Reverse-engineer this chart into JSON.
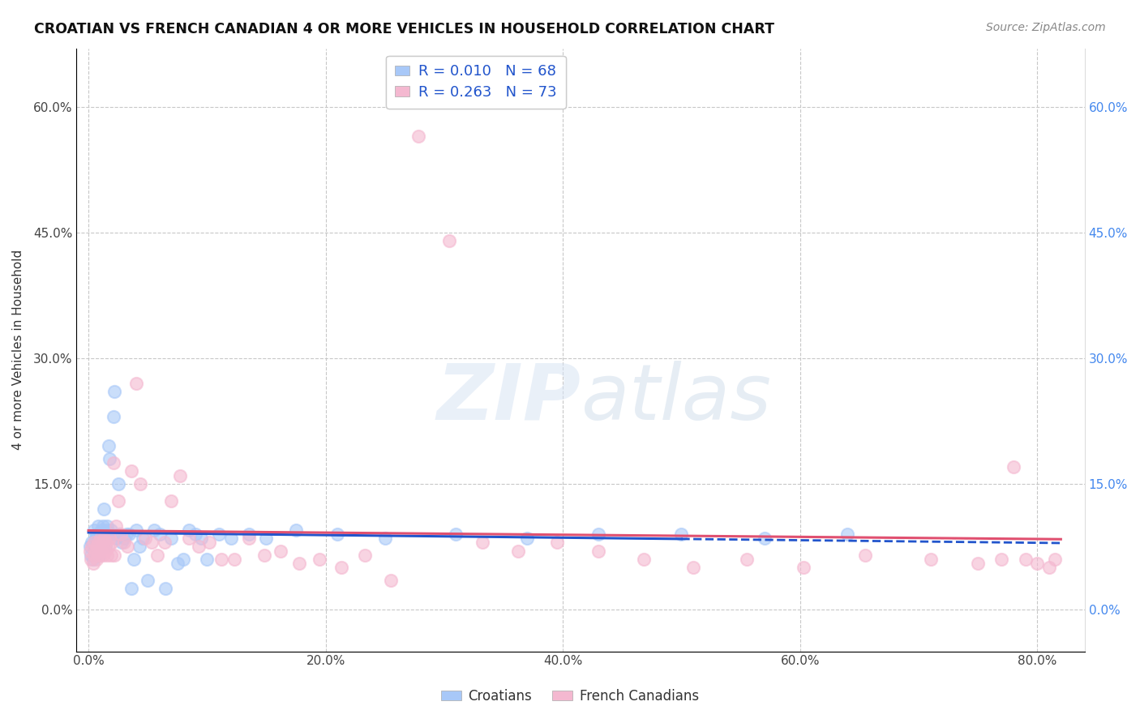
{
  "title": "CROATIAN VS FRENCH CANADIAN 4 OR MORE VEHICLES IN HOUSEHOLD CORRELATION CHART",
  "source": "Source: ZipAtlas.com",
  "xlabel_ticks": [
    "0.0%",
    "20.0%",
    "40.0%",
    "60.0%",
    "80.0%"
  ],
  "ylabel_ticks": [
    "0.0%",
    "15.0%",
    "30.0%",
    "45.0%",
    "60.0%"
  ],
  "xlabel_vals": [
    0.0,
    0.2,
    0.4,
    0.6,
    0.8
  ],
  "ylabel_vals": [
    0.0,
    0.15,
    0.3,
    0.45,
    0.6
  ],
  "ylabel_label": "4 or more Vehicles in Household",
  "xlim": [
    -0.01,
    0.84
  ],
  "ylim": [
    -0.05,
    0.67
  ],
  "croatian_R": 0.01,
  "croatian_N": 68,
  "french_canadian_R": 0.263,
  "french_canadian_N": 73,
  "croatian_color": "#a8c8f8",
  "french_color": "#f4b8d0",
  "croatian_line_color": "#2255cc",
  "french_line_color": "#e05070",
  "croatian_line_dash": "solid",
  "french_line_dash": "solid",
  "watermark_text": "ZIPatlas",
  "legend_labels": [
    "Croatians",
    "French Canadians"
  ],
  "croatian_x": [
    0.001,
    0.002,
    0.003,
    0.004,
    0.005,
    0.005,
    0.006,
    0.007,
    0.007,
    0.008,
    0.008,
    0.009,
    0.009,
    0.01,
    0.01,
    0.011,
    0.011,
    0.012,
    0.012,
    0.013,
    0.013,
    0.014,
    0.014,
    0.015,
    0.015,
    0.016,
    0.017,
    0.018,
    0.019,
    0.02,
    0.021,
    0.022,
    0.023,
    0.025,
    0.026,
    0.028,
    0.03,
    0.032,
    0.034,
    0.036,
    0.038,
    0.04,
    0.043,
    0.046,
    0.05,
    0.055,
    0.06,
    0.065,
    0.07,
    0.075,
    0.08,
    0.085,
    0.09,
    0.095,
    0.1,
    0.11,
    0.12,
    0.135,
    0.15,
    0.175,
    0.21,
    0.25,
    0.31,
    0.37,
    0.43,
    0.5,
    0.57,
    0.64
  ],
  "croatian_y": [
    0.075,
    0.065,
    0.08,
    0.06,
    0.07,
    0.095,
    0.085,
    0.09,
    0.065,
    0.1,
    0.075,
    0.085,
    0.065,
    0.09,
    0.08,
    0.095,
    0.075,
    0.085,
    0.1,
    0.12,
    0.08,
    0.09,
    0.075,
    0.095,
    0.085,
    0.1,
    0.195,
    0.18,
    0.095,
    0.09,
    0.23,
    0.26,
    0.085,
    0.15,
    0.09,
    0.08,
    0.085,
    0.09,
    0.09,
    0.025,
    0.06,
    0.095,
    0.075,
    0.085,
    0.035,
    0.095,
    0.09,
    0.025,
    0.085,
    0.055,
    0.06,
    0.095,
    0.09,
    0.085,
    0.06,
    0.09,
    0.085,
    0.09,
    0.085,
    0.095,
    0.09,
    0.085,
    0.09,
    0.085,
    0.09,
    0.09,
    0.085,
    0.09
  ],
  "french_x": [
    0.001,
    0.002,
    0.003,
    0.004,
    0.005,
    0.005,
    0.006,
    0.007,
    0.007,
    0.008,
    0.008,
    0.009,
    0.01,
    0.01,
    0.011,
    0.012,
    0.012,
    0.013,
    0.014,
    0.015,
    0.016,
    0.017,
    0.018,
    0.019,
    0.02,
    0.021,
    0.022,
    0.023,
    0.025,
    0.027,
    0.03,
    0.033,
    0.036,
    0.04,
    0.044,
    0.048,
    0.053,
    0.058,
    0.064,
    0.07,
    0.077,
    0.085,
    0.093,
    0.102,
    0.112,
    0.123,
    0.135,
    0.148,
    0.162,
    0.178,
    0.195,
    0.213,
    0.233,
    0.255,
    0.278,
    0.304,
    0.332,
    0.362,
    0.395,
    0.43,
    0.468,
    0.51,
    0.555,
    0.603,
    0.655,
    0.71,
    0.75,
    0.77,
    0.78,
    0.79,
    0.8,
    0.81,
    0.815
  ],
  "french_y": [
    0.07,
    0.06,
    0.075,
    0.055,
    0.065,
    0.08,
    0.07,
    0.075,
    0.06,
    0.08,
    0.065,
    0.075,
    0.065,
    0.085,
    0.07,
    0.08,
    0.065,
    0.085,
    0.07,
    0.08,
    0.065,
    0.075,
    0.085,
    0.065,
    0.08,
    0.175,
    0.065,
    0.1,
    0.13,
    0.09,
    0.08,
    0.075,
    0.165,
    0.27,
    0.15,
    0.085,
    0.08,
    0.065,
    0.08,
    0.13,
    0.16,
    0.085,
    0.075,
    0.08,
    0.06,
    0.06,
    0.085,
    0.065,
    0.07,
    0.055,
    0.06,
    0.05,
    0.065,
    0.035,
    0.565,
    0.44,
    0.08,
    0.07,
    0.08,
    0.07,
    0.06,
    0.05,
    0.06,
    0.05,
    0.065,
    0.06,
    0.055,
    0.06,
    0.17,
    0.06,
    0.055,
    0.05,
    0.06
  ]
}
